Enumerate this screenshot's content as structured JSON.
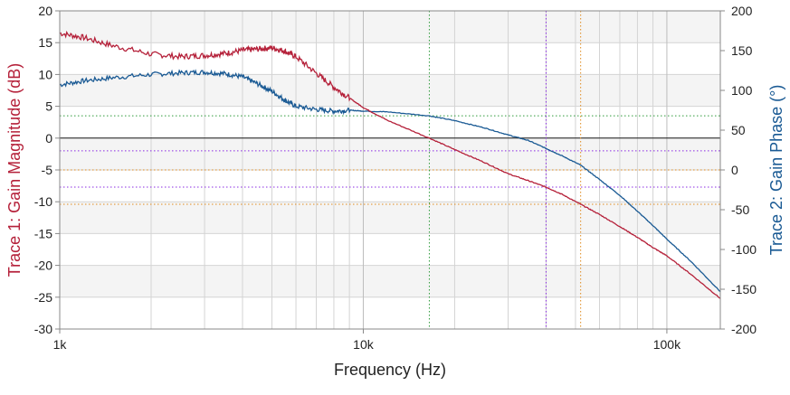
{
  "chart_data": {
    "type": "line",
    "title": "",
    "xlabel": "Frequency (Hz)",
    "ylabel_left": "Trace 1: Gain Magnitude (dB)",
    "ylabel_right": "Trace 2: Gain Phase (°)",
    "xscale": "log",
    "xlim": [
      1000,
      150000
    ],
    "ylim_left": [
      -30,
      20
    ],
    "ylim_right": [
      -200,
      200
    ],
    "x_ticks": [
      1000,
      10000,
      100000
    ],
    "x_tick_labels": [
      "1k",
      "10k",
      "100k"
    ],
    "y_left_ticks": [
      20,
      15,
      10,
      5,
      0,
      -5,
      -10,
      -15,
      -20,
      -25,
      -30
    ],
    "y_right_ticks": [
      200,
      150,
      100,
      50,
      0,
      -50,
      -100,
      -150,
      -200
    ],
    "grid": true,
    "colors": {
      "magnitude": "#b5213a",
      "phase": "#1a5a94",
      "crossover_marker": "#2e9a3a",
      "marker_purple": "#8a2be2",
      "marker_orange": "#e08a1e",
      "zero_line": "#1a1a1a",
      "band": "#f4f4f4",
      "grid": "#d4d4d4"
    },
    "series": [
      {
        "name": "Trace 1: Gain Magnitude (dB)",
        "axis": "left",
        "x": [
          1000,
          1200,
          1500,
          2000,
          2500,
          3000,
          3500,
          4000,
          4500,
          5000,
          5500,
          6000,
          7000,
          8000,
          9000,
          10000,
          12000,
          16500,
          20000,
          25000,
          30000,
          35000,
          40000,
          45000,
          52000,
          60000,
          70000,
          80000,
          90000,
          100000,
          120000,
          150000
        ],
        "values": [
          16.5,
          15.8,
          14.5,
          13.2,
          12.8,
          13.0,
          13.3,
          13.8,
          14.0,
          14.2,
          13.7,
          12.8,
          10.2,
          8.0,
          6.3,
          4.8,
          2.8,
          0.0,
          -1.8,
          -3.8,
          -5.6,
          -6.7,
          -7.7,
          -8.8,
          -10.4,
          -12.0,
          -13.9,
          -15.6,
          -17.2,
          -18.5,
          -21.4,
          -25.2
        ]
      },
      {
        "name": "Trace 2: Gain Phase (°)",
        "axis": "right",
        "x": [
          1000,
          1200,
          1500,
          2000,
          2500,
          3000,
          3500,
          4000,
          4500,
          5000,
          5500,
          6000,
          7000,
          8000,
          9000,
          10000,
          12000,
          16500,
          20000,
          25000,
          30000,
          35000,
          40000,
          45000,
          52000,
          60000,
          70000,
          80000,
          90000,
          100000,
          120000,
          150000
        ],
        "values": [
          107,
          112,
          116,
          120,
          122,
          123,
          121,
          117,
          108,
          99,
          88,
          80,
          76,
          74,
          75,
          74,
          73,
          68,
          62,
          53,
          44,
          37,
          27,
          18,
          6,
          -12,
          -32,
          -52,
          -70,
          -87,
          -115,
          -153
        ]
      }
    ],
    "reference_lines": {
      "vertical": [
        {
          "x": 16500,
          "color_key": "crossover_marker"
        },
        {
          "x": 40000,
          "color_key": "marker_purple"
        },
        {
          "x": 52000,
          "color_key": "marker_orange"
        }
      ],
      "horizontal_left": [
        {
          "y": 0,
          "color_key": "zero_line",
          "style": "solid"
        },
        {
          "y": 3.5,
          "color_key": "crossover_marker",
          "style": "dotted"
        },
        {
          "y": -2,
          "color_key": "marker_purple",
          "style": "dotted"
        },
        {
          "y": -5,
          "color_key": "marker_orange",
          "style": "dotted"
        },
        {
          "y": -7.7,
          "color_key": "marker_purple",
          "style": "dotted"
        },
        {
          "y": -10.4,
          "color_key": "marker_orange",
          "style": "dotted"
        }
      ]
    }
  }
}
